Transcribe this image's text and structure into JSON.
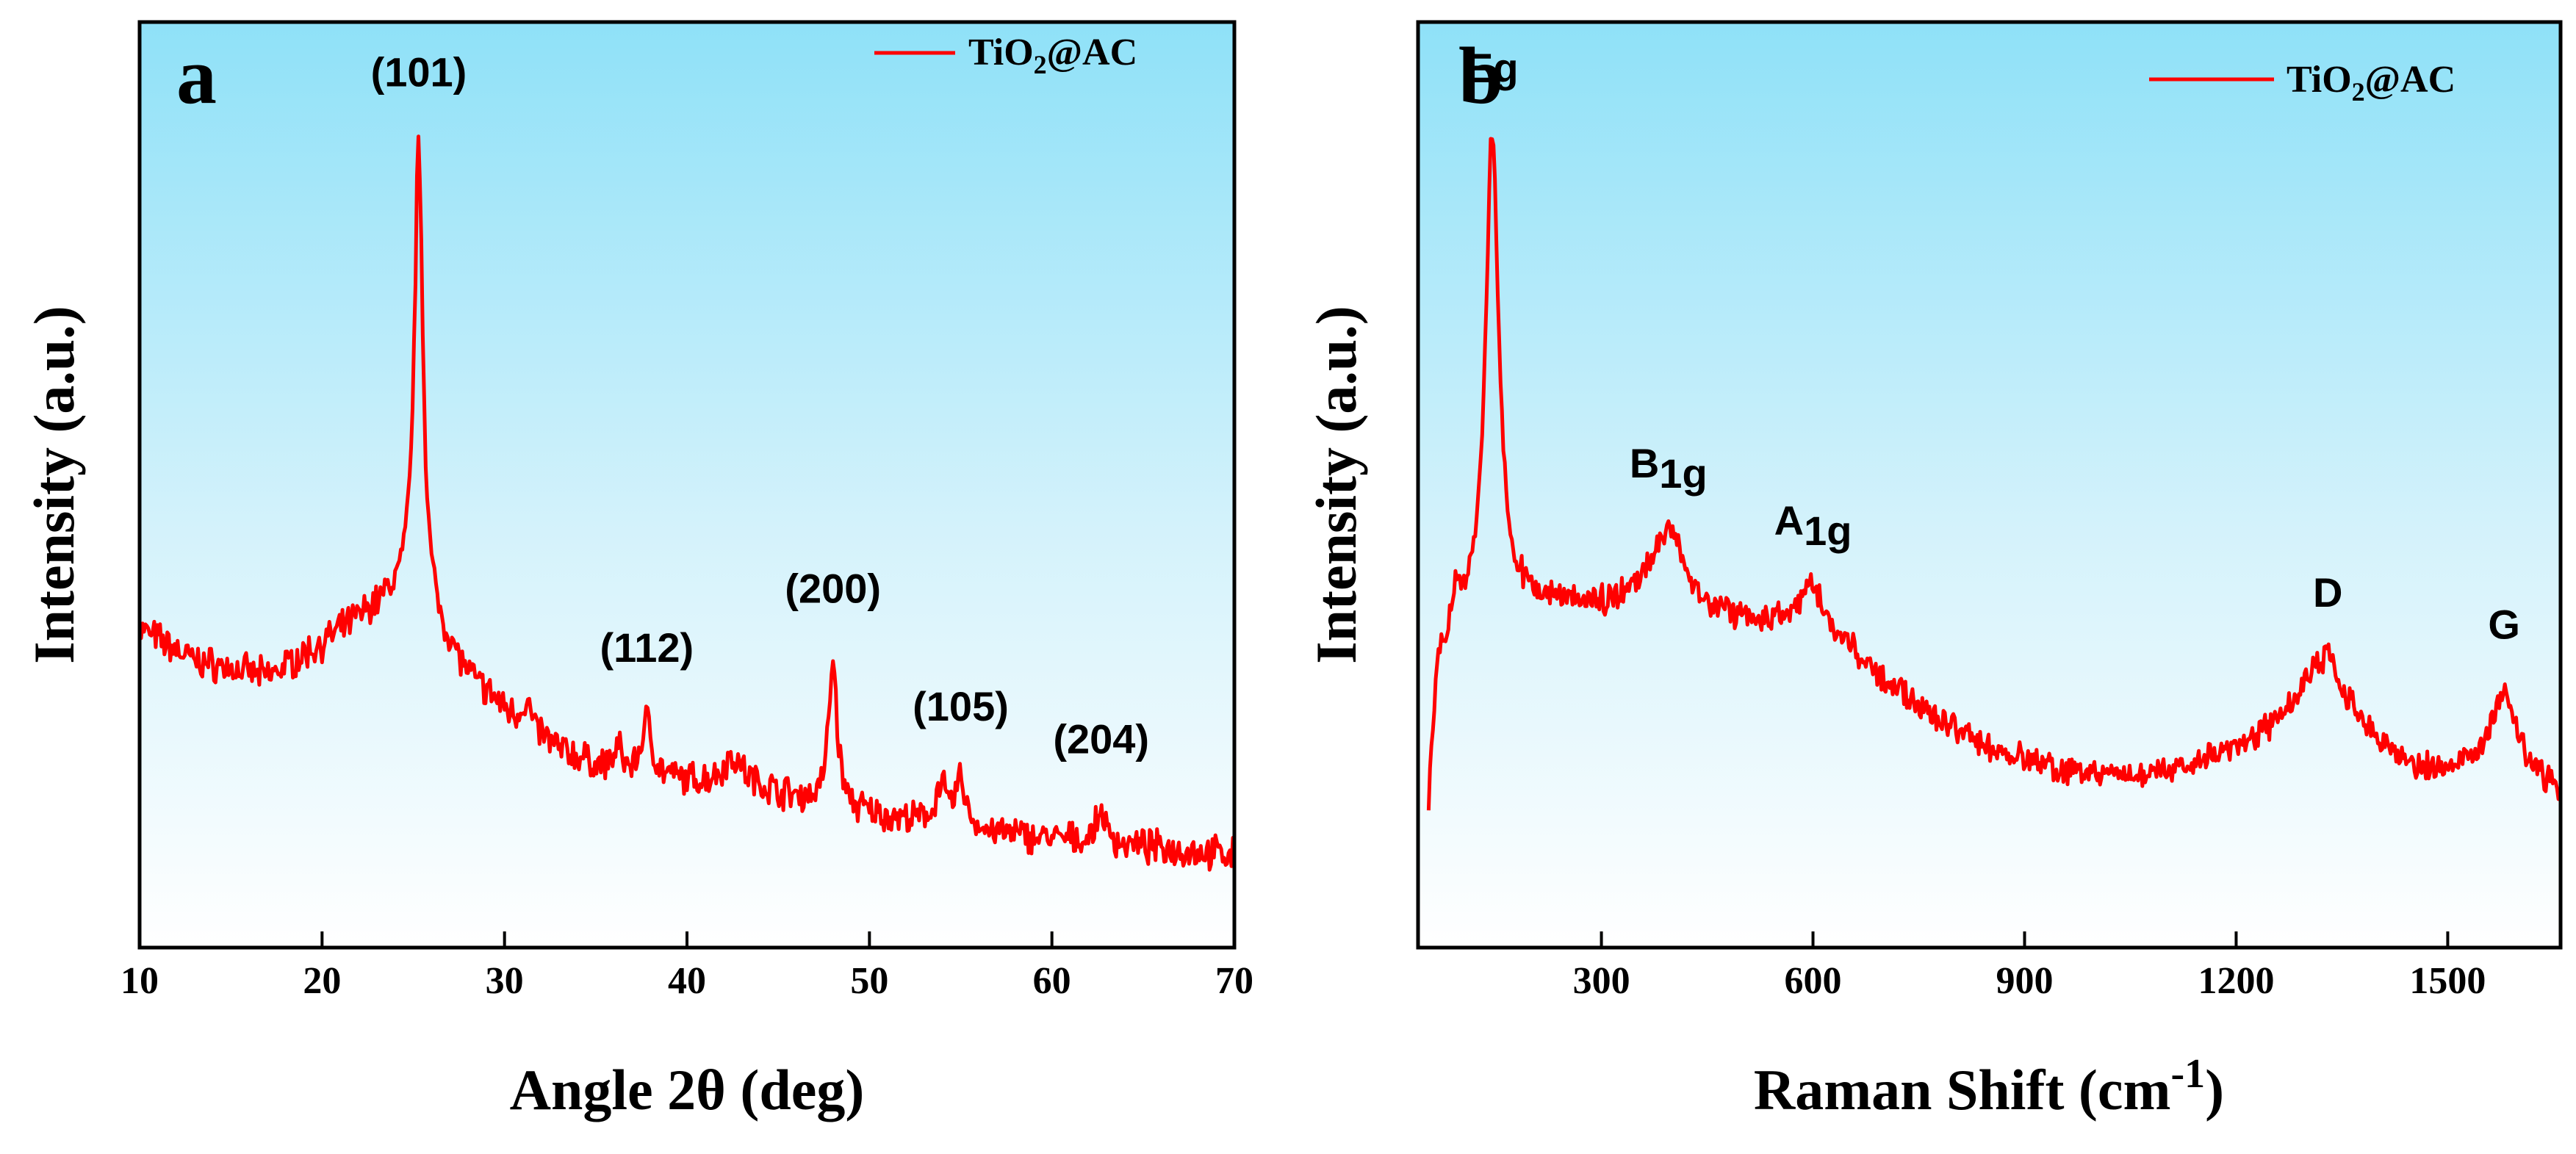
{
  "chart_data": [
    {
      "type": "line",
      "panel_label": "a",
      "xlabel_main": "Angle 2θ (deg)",
      "ylabel": "Intensity (a.u.)",
      "xlim": [
        10,
        70
      ],
      "ylim": [
        0,
        100
      ],
      "xticks": [
        10,
        20,
        30,
        40,
        50,
        60,
        70
      ],
      "yticks_shown": false,
      "legend": {
        "base": "TiO",
        "sub": "2",
        "rest": "@AC",
        "placement": "top-right"
      },
      "series": [
        {
          "name": "TiO2@AC",
          "color": "#ff0000"
        }
      ],
      "noise": 1.6,
      "baseline": [
        [
          10,
          32
        ],
        [
          13,
          28
        ],
        [
          17,
          26
        ],
        [
          20,
          30
        ],
        [
          22.5,
          34
        ],
        [
          24,
          36
        ],
        [
          25,
          37
        ],
        [
          26,
          33
        ],
        [
          28,
          26
        ],
        [
          30,
          22
        ],
        [
          33,
          17
        ],
        [
          36,
          14
        ],
        [
          40,
          13
        ],
        [
          43,
          13
        ],
        [
          46,
          11
        ],
        [
          50,
          9
        ],
        [
          55,
          7
        ],
        [
          60,
          6
        ],
        [
          65,
          5
        ],
        [
          70,
          4
        ]
      ],
      "peaks": [
        {
          "x": 25.3,
          "h": 56,
          "w": 0.28,
          "label": "(101)"
        },
        {
          "x": 37.8,
          "h": 7,
          "w": 0.35,
          "label": "(112)"
        },
        {
          "x": 48.0,
          "h": 18,
          "w": 0.28,
          "label": "(200)"
        },
        {
          "x": 53.9,
          "h": 5,
          "w": 0.35,
          "label": ""
        },
        {
          "x": 55.0,
          "h": 6,
          "w": 0.35,
          "label": "(105)"
        },
        {
          "x": 62.7,
          "h": 4,
          "w": 0.3,
          "label": "(204)"
        },
        {
          "x": 31.2,
          "h": 3,
          "w": 0.25,
          "label": ""
        },
        {
          "x": 36.2,
          "h": 3,
          "w": 0.3,
          "label": ""
        },
        {
          "x": 42.5,
          "h": 3,
          "w": 0.6,
          "label": ""
        }
      ]
    },
    {
      "type": "line",
      "panel_label": "b",
      "xlabel_main": "Raman Shift (cm",
      "xlabel_sup": "-1",
      "xlabel_close": ")",
      "ylabel": "Intensity (a.u.)",
      "xlim": [
        40,
        1660
      ],
      "ylim": [
        0,
        100
      ],
      "xticks": [
        300,
        600,
        900,
        1200,
        1500
      ],
      "yticks_shown": false,
      "legend": {
        "base": "TiO",
        "sub": "2",
        "rest": "@AC",
        "placement": "top-right"
      },
      "series": [
        {
          "name": "TiO2@AC",
          "color": "#ff0000"
        }
      ],
      "noise": 1.4,
      "baseline": [
        [
          55,
          10
        ],
        [
          68,
          28
        ],
        [
          90,
          33
        ],
        [
          120,
          35
        ],
        [
          160,
          37
        ],
        [
          200,
          37
        ],
        [
          300,
          36
        ],
        [
          350,
          37
        ],
        [
          500,
          34
        ],
        [
          560,
          33
        ],
        [
          650,
          30
        ],
        [
          750,
          23
        ],
        [
          850,
          18
        ],
        [
          950,
          15
        ],
        [
          1050,
          14
        ],
        [
          1150,
          16
        ],
        [
          1250,
          20
        ],
        [
          1300,
          23
        ],
        [
          1400,
          18
        ],
        [
          1450,
          15
        ],
        [
          1500,
          15
        ],
        [
          1560,
          16
        ],
        [
          1620,
          14
        ],
        [
          1660,
          12
        ]
      ],
      "peaks": [
        {
          "x": 145,
          "h": 61,
          "w": 11,
          "label": "Eg",
          "label_sub": ""
        },
        {
          "x": 95,
          "h": 4,
          "w": 6,
          "label": "",
          "label_sub": ""
        },
        {
          "x": 395,
          "h": 10,
          "w": 28,
          "label": "B",
          "label_sub": "1g"
        },
        {
          "x": 600,
          "h": 7,
          "w": 25,
          "label": "A",
          "label_sub": "1g"
        },
        {
          "x": 1330,
          "h": 8,
          "w": 30,
          "label": "D",
          "label_sub": ""
        },
        {
          "x": 1580,
          "h": 10,
          "w": 20,
          "label": "G",
          "label_sub": ""
        }
      ]
    }
  ]
}
